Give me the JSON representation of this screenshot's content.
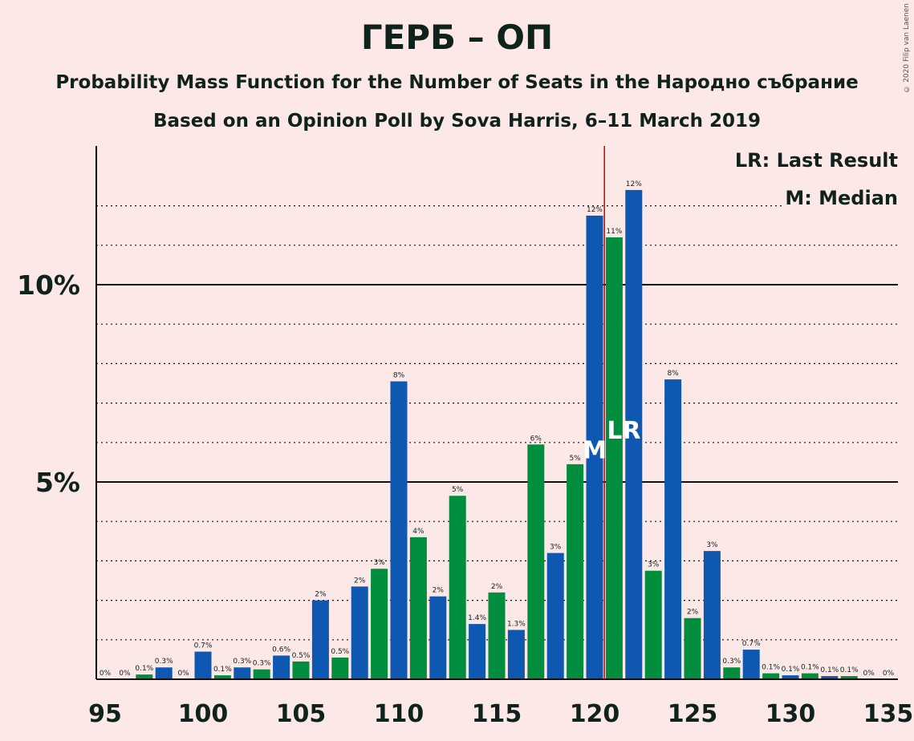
{
  "title": "ГЕРБ – ОП",
  "subtitle1": "Probability Mass Function for the Number of Seats in the Народно събрание",
  "subtitle2": "Based on an Opinion Poll by Sova Harris, 6–11 March 2019",
  "copyright": "© 2020 Filip van Laenen",
  "legend": {
    "lr": "LR: Last Result",
    "median": "M: Median"
  },
  "colors": {
    "blue": "#0e58b1",
    "green": "#008e3e",
    "lastResultLine": "#cc0000",
    "background": "#fde8e8"
  },
  "chart_data": {
    "type": "bar",
    "xlabel": "",
    "ylabel": "",
    "x_ticks": [
      95,
      100,
      105,
      110,
      115,
      120,
      125,
      130,
      135
    ],
    "y_ticks": [
      {
        "value": 5,
        "label": "5%"
      },
      {
        "value": 10,
        "label": "10%"
      }
    ],
    "ylim": [
      0,
      13.5
    ],
    "xlim": [
      94.5,
      135.5
    ],
    "grid": "dotted lines every 1%, solid at 5% and 10%",
    "median_seat": 120,
    "median_marker": "M",
    "last_result_seat": 121,
    "last_result_marker": "LR",
    "seats": [
      95,
      96,
      97,
      98,
      99,
      100,
      101,
      102,
      103,
      104,
      105,
      106,
      107,
      108,
      109,
      110,
      111,
      112,
      113,
      114,
      115,
      116,
      117,
      118,
      119,
      120,
      121,
      122,
      123,
      124,
      125,
      126,
      127,
      128,
      129,
      130,
      131,
      132,
      133,
      134,
      135
    ],
    "values": [
      0,
      0,
      0.12,
      0.3,
      0,
      0.7,
      0.1,
      0.3,
      0.25,
      0.6,
      0.45,
      2.0,
      0.55,
      2.35,
      2.8,
      7.55,
      3.6,
      2.1,
      4.65,
      1.4,
      2.2,
      1.25,
      5.95,
      3.2,
      5.45,
      11.75,
      11.2,
      12.4,
      2.75,
      7.6,
      1.55,
      3.25,
      0.3,
      0.75,
      0.15,
      0.1,
      0.15,
      0.08,
      0.08,
      0,
      0
    ],
    "labels": [
      "0%",
      "0%",
      "0.1%",
      "0.3%",
      "0%",
      "0.7%",
      "0.1%",
      "0.3%",
      "0.3%",
      "0.6%",
      "0.5%",
      "2%",
      "0.5%",
      "2%",
      "3%",
      "8%",
      "4%",
      "2%",
      "5%",
      "1.4%",
      "2%",
      "1.3%",
      "6%",
      "3%",
      "5%",
      "12%",
      "11%",
      "12%",
      "3%",
      "8%",
      "2%",
      "3%",
      "0.3%",
      "0.7%",
      "0.1%",
      "0.1%",
      "0.1%",
      "0.1%",
      "0.1%",
      "0%",
      "0%"
    ]
  }
}
